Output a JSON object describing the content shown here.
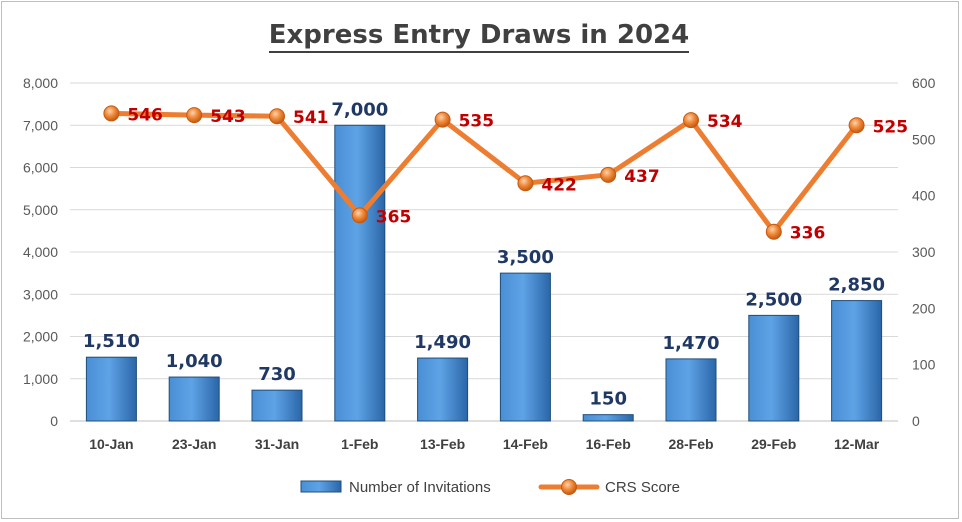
{
  "chart_data": {
    "type": "bar",
    "title": "Express Entry Draws in 2024",
    "categories": [
      "10-Jan",
      "23-Jan",
      "31-Jan",
      "1-Feb",
      "13-Feb",
      "14-Feb",
      "16-Feb",
      "28-Feb",
      "29-Feb",
      "12-Mar"
    ],
    "series": [
      {
        "name": "Number of Invitations",
        "type": "bar",
        "axis": "left",
        "values": [
          1510,
          1040,
          730,
          7000,
          1490,
          3500,
          150,
          1470,
          2500,
          2850
        ],
        "labels": [
          "1,510",
          "1,040",
          "730",
          "7,000",
          "1,490",
          "3,500",
          "150",
          "1,470",
          "2,500",
          "2,850"
        ],
        "color": "#2e75b6"
      },
      {
        "name": "CRS Score",
        "type": "line",
        "axis": "right",
        "values": [
          546,
          543,
          541,
          365,
          535,
          422,
          437,
          534,
          336,
          525
        ],
        "labels": [
          "546",
          "543",
          "541",
          "365",
          "535",
          "422",
          "437",
          "534",
          "336",
          "525"
        ],
        "color": "#ed7d31"
      }
    ],
    "y_left": {
      "ylim": [
        0,
        8000
      ],
      "ticks": [
        "0",
        "1,000",
        "2,000",
        "3,000",
        "4,000",
        "5,000",
        "6,000",
        "7,000",
        "8,000"
      ]
    },
    "y_right": {
      "ylim": [
        0,
        600
      ],
      "ticks": [
        "0",
        "100",
        "200",
        "300",
        "400",
        "500",
        "600"
      ]
    },
    "grid": true,
    "legend_position": "bottom"
  }
}
